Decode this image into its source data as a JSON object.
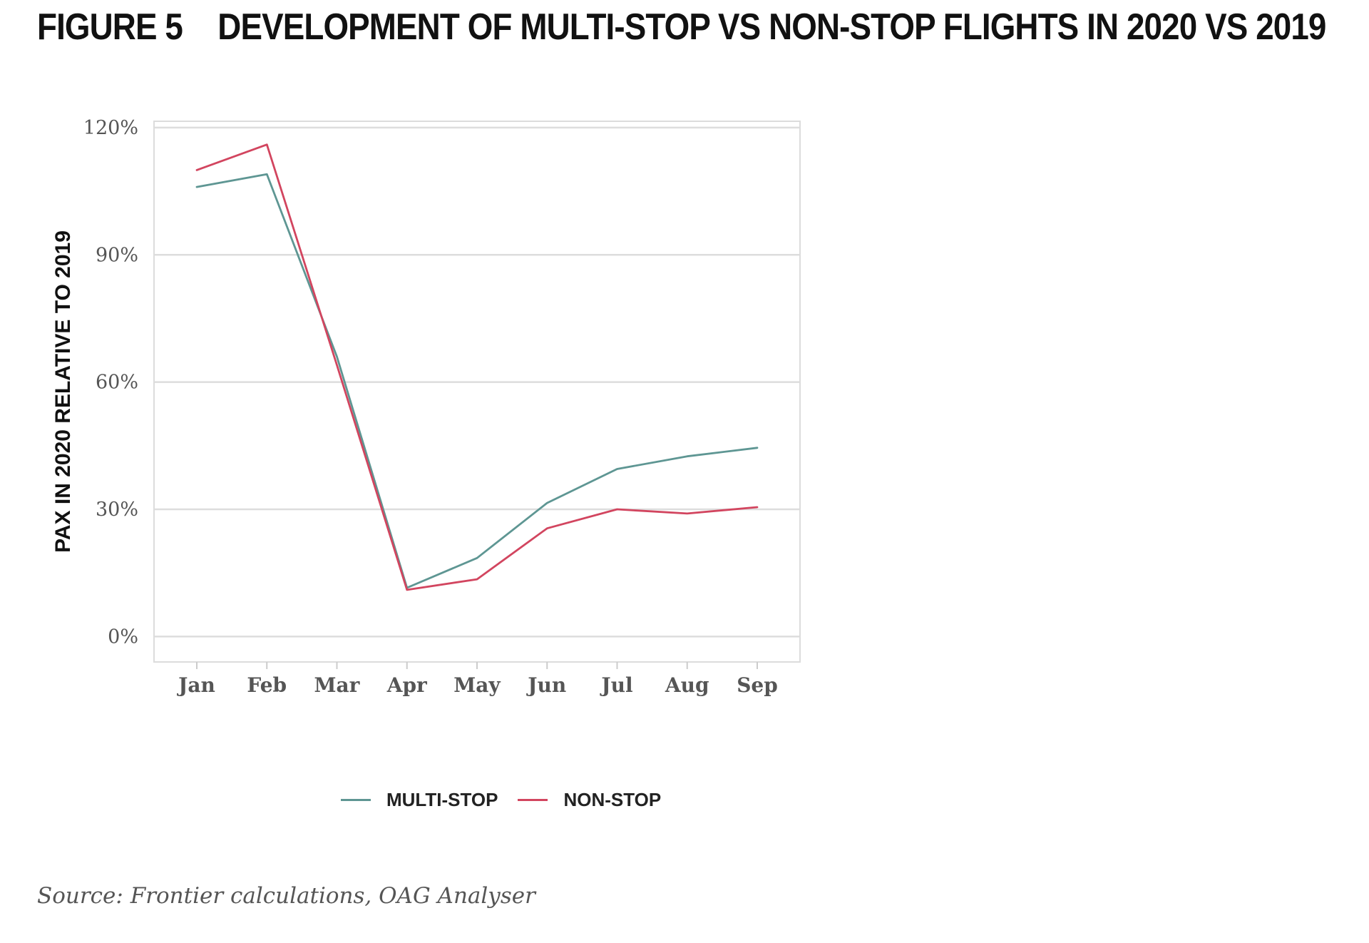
{
  "figure": {
    "number": "FIGURE 5",
    "title": "DEVELOPMENT OF MULTI-STOP VS NON-STOP FLIGHTS IN 2020 VS 2019"
  },
  "source": "Source: Frontier calculations, OAG Analyser",
  "chart_data": {
    "type": "line",
    "title": "DEVELOPMENT OF MULTI-STOP VS NON-STOP FLIGHTS IN 2020 VS 2019",
    "xlabel": "",
    "ylabel": "PAX IN 2020 RELATIVE TO 2019",
    "categories": [
      "Jan",
      "Feb",
      "Mar",
      "Apr",
      "May",
      "Jun",
      "Jul",
      "Aug",
      "Sep"
    ],
    "y_ticks": [
      0,
      30,
      60,
      90,
      120
    ],
    "y_tick_labels": [
      "0%",
      "30%",
      "60%",
      "90%",
      "120%"
    ],
    "ylim": [
      -6,
      121.5
    ],
    "grid": "horizontal",
    "legend_position": "bottom",
    "series": [
      {
        "name": "MULTI-STOP",
        "color": "#5e9693",
        "values": [
          106,
          109,
          66,
          11.5,
          18.5,
          31.5,
          39.5,
          42.5,
          44.5
        ]
      },
      {
        "name": "NON-STOP",
        "color": "#d2455f",
        "values": [
          110,
          116,
          64,
          11,
          13.5,
          25.5,
          30,
          29,
          30.5
        ]
      }
    ]
  }
}
